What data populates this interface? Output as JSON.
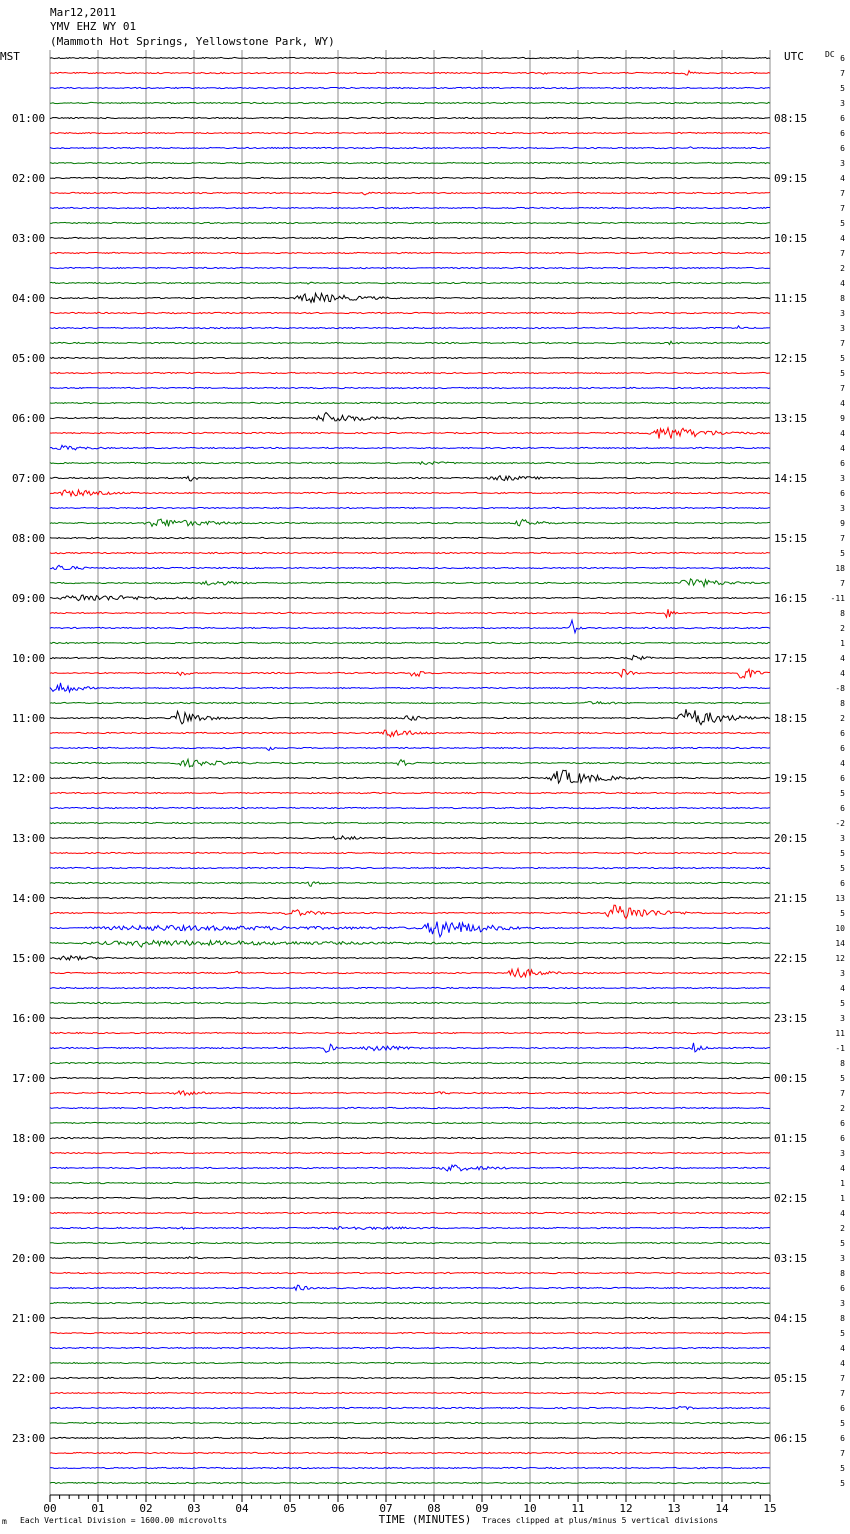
{
  "header": {
    "date": "Mar12,2011",
    "station": "YMV EHZ WY 01",
    "location": "(Mammoth Hot Springs, Yellowstone Park, WY)"
  },
  "left_zone": "MST",
  "right_zone": "UTC",
  "dc_header": "DC",
  "footer": {
    "scale_note": "Each Vertical Division = 1600.00 microvolts",
    "clip_note": "Traces clipped at plus/minus 5 vertical divisions",
    "mark": "m"
  },
  "colors": {
    "trace_cycle": [
      "#000000",
      "#ff0000",
      "#0000ff",
      "#007700"
    ],
    "grid": "#8c8c8c"
  },
  "chart_data": {
    "type": "line",
    "title": "YMV EHZ WY 01",
    "xlabel": "TIME (MINUTES)",
    "ylabel": "",
    "x_ticks": [
      "00",
      "01",
      "02",
      "03",
      "04",
      "05",
      "06",
      "07",
      "08",
      "09",
      "10",
      "11",
      "12",
      "13",
      "14",
      "15"
    ],
    "xlim": [
      0,
      15
    ],
    "minutes_per_line": 15,
    "lines_count": 96,
    "left_labels": [
      {
        "line": 4,
        "text": "01:00"
      },
      {
        "line": 8,
        "text": "02:00"
      },
      {
        "line": 12,
        "text": "03:00"
      },
      {
        "line": 16,
        "text": "04:00"
      },
      {
        "line": 20,
        "text": "05:00"
      },
      {
        "line": 24,
        "text": "06:00"
      },
      {
        "line": 28,
        "text": "07:00"
      },
      {
        "line": 32,
        "text": "08:00"
      },
      {
        "line": 36,
        "text": "09:00"
      },
      {
        "line": 40,
        "text": "10:00"
      },
      {
        "line": 44,
        "text": "11:00"
      },
      {
        "line": 48,
        "text": "12:00"
      },
      {
        "line": 52,
        "text": "13:00"
      },
      {
        "line": 56,
        "text": "14:00"
      },
      {
        "line": 60,
        "text": "15:00"
      },
      {
        "line": 64,
        "text": "16:00"
      },
      {
        "line": 68,
        "text": "17:00"
      },
      {
        "line": 72,
        "text": "18:00"
      },
      {
        "line": 76,
        "text": "19:00"
      },
      {
        "line": 80,
        "text": "20:00"
      },
      {
        "line": 84,
        "text": "21:00"
      },
      {
        "line": 88,
        "text": "22:00"
      },
      {
        "line": 92,
        "text": "23:00"
      }
    ],
    "right_labels": [
      {
        "line": 4,
        "text": "08:15"
      },
      {
        "line": 8,
        "text": "09:15"
      },
      {
        "line": 12,
        "text": "10:15"
      },
      {
        "line": 16,
        "text": "11:15"
      },
      {
        "line": 20,
        "text": "12:15"
      },
      {
        "line": 24,
        "text": "13:15"
      },
      {
        "line": 28,
        "text": "14:15"
      },
      {
        "line": 32,
        "text": "15:15"
      },
      {
        "line": 36,
        "text": "16:15"
      },
      {
        "line": 40,
        "text": "17:15"
      },
      {
        "line": 44,
        "text": "18:15"
      },
      {
        "line": 48,
        "text": "19:15"
      },
      {
        "line": 52,
        "text": "20:15"
      },
      {
        "line": 56,
        "text": "21:15"
      },
      {
        "line": 60,
        "text": "22:15"
      },
      {
        "line": 64,
        "text": "23:15"
      },
      {
        "line": 68,
        "text": "00:15"
      },
      {
        "line": 72,
        "text": "01:15"
      },
      {
        "line": 76,
        "text": "02:15"
      },
      {
        "line": 80,
        "text": "03:15"
      },
      {
        "line": 84,
        "text": "04:15"
      },
      {
        "line": 88,
        "text": "05:15"
      },
      {
        "line": 92,
        "text": "06:15"
      }
    ],
    "dc_values": [
      "6",
      "7",
      "5",
      "3",
      "6",
      "6",
      "6",
      "3",
      "4",
      "7",
      "7",
      "5",
      "4",
      "7",
      "2",
      "4",
      "8",
      "3",
      "3",
      "7",
      "5",
      "5",
      "7",
      "4",
      "9",
      "4",
      "4",
      "6",
      "3",
      "6",
      "3",
      "9",
      "7",
      "5",
      "18",
      "7",
      "-11",
      "8",
      "2",
      "1",
      "4",
      "4",
      "-8",
      "8",
      "2",
      "6",
      "6",
      "4",
      "6",
      "5",
      "6",
      "-2",
      "3",
      "5",
      "5",
      "6",
      "13",
      "5",
      "10",
      "14",
      "12",
      "3",
      "4",
      "5",
      "3",
      "11",
      "-1",
      "8",
      "5",
      "7",
      "2",
      "6",
      "6",
      "3",
      "4",
      "1",
      "1",
      "4",
      "2",
      "5",
      "3",
      "8",
      "6",
      "3",
      "8",
      "5",
      "4",
      "4",
      "7",
      "7",
      "6",
      "5",
      "6",
      "7",
      "5",
      "5"
    ],
    "events": [
      {
        "line": 1,
        "start": 13.2,
        "end": 13.6,
        "amp": 4
      },
      {
        "line": 1,
        "start": 10.2,
        "end": 10.6,
        "amp": 2
      },
      {
        "line": 6,
        "start": 13.3,
        "end": 13.5,
        "amp": 2
      },
      {
        "line": 9,
        "start": 6.5,
        "end": 6.9,
        "amp": 3
      },
      {
        "line": 15,
        "start": 5.3,
        "end": 5.7,
        "amp": 2
      },
      {
        "line": 16,
        "start": 5.0,
        "end": 7.8,
        "amp": 6
      },
      {
        "line": 18,
        "start": 14.3,
        "end": 14.6,
        "amp": 3
      },
      {
        "line": 19,
        "start": 12.8,
        "end": 13.6,
        "amp": 2
      },
      {
        "line": 24,
        "start": 5.4,
        "end": 7.8,
        "amp": 6
      },
      {
        "line": 25,
        "start": 12.4,
        "end": 15.0,
        "amp": 8
      },
      {
        "line": 26,
        "start": 0.0,
        "end": 1.8,
        "amp": 3
      },
      {
        "line": 27,
        "start": 7.5,
        "end": 9.5,
        "amp": 2
      },
      {
        "line": 28,
        "start": 2.8,
        "end": 3.4,
        "amp": 4
      },
      {
        "line": 28,
        "start": 9.0,
        "end": 11.5,
        "amp": 3
      },
      {
        "line": 29,
        "start": 0.0,
        "end": 2.5,
        "amp": 4
      },
      {
        "line": 31,
        "start": 1.8,
        "end": 5.0,
        "amp": 5
      },
      {
        "line": 31,
        "start": 9.6,
        "end": 11.0,
        "amp": 4
      },
      {
        "line": 34,
        "start": 0.0,
        "end": 1.2,
        "amp": 4
      },
      {
        "line": 35,
        "start": 3.0,
        "end": 5.0,
        "amp": 3
      },
      {
        "line": 35,
        "start": 13.0,
        "end": 15.0,
        "amp": 6
      },
      {
        "line": 36,
        "start": 0.0,
        "end": 4.5,
        "amp": 4
      },
      {
        "line": 37,
        "start": 12.8,
        "end": 13.2,
        "amp": 7
      },
      {
        "line": 38,
        "start": 10.8,
        "end": 11.1,
        "amp": 12
      },
      {
        "line": 39,
        "start": 11.8,
        "end": 12.2,
        "amp": 2
      },
      {
        "line": 40,
        "start": 12.0,
        "end": 13.0,
        "amp": 3
      },
      {
        "line": 41,
        "start": 2.6,
        "end": 3.2,
        "amp": 4
      },
      {
        "line": 41,
        "start": 7.5,
        "end": 8.0,
        "amp": 8
      },
      {
        "line": 41,
        "start": 11.8,
        "end": 12.4,
        "amp": 6
      },
      {
        "line": 41,
        "start": 14.3,
        "end": 15.0,
        "amp": 10
      },
      {
        "line": 42,
        "start": 0.0,
        "end": 1.0,
        "amp": 9
      },
      {
        "line": 43,
        "start": 11.0,
        "end": 13.0,
        "amp": 2
      },
      {
        "line": 44,
        "start": 2.5,
        "end": 3.8,
        "amp": 9
      },
      {
        "line": 44,
        "start": 7.3,
        "end": 8.2,
        "amp": 4
      },
      {
        "line": 44,
        "start": 13.0,
        "end": 15.0,
        "amp": 11
      },
      {
        "line": 45,
        "start": 6.8,
        "end": 8.5,
        "amp": 5
      },
      {
        "line": 46,
        "start": 4.5,
        "end": 4.9,
        "amp": 3
      },
      {
        "line": 47,
        "start": 2.5,
        "end": 5.0,
        "amp": 4
      },
      {
        "line": 47,
        "start": 7.2,
        "end": 7.7,
        "amp": 8
      },
      {
        "line": 48,
        "start": 10.3,
        "end": 12.5,
        "amp": 9
      },
      {
        "line": 52,
        "start": 5.8,
        "end": 7.2,
        "amp": 3
      },
      {
        "line": 55,
        "start": 5.3,
        "end": 6.0,
        "amp": 4
      },
      {
        "line": 57,
        "start": 4.8,
        "end": 6.5,
        "amp": 4
      },
      {
        "line": 57,
        "start": 11.5,
        "end": 13.6,
        "amp": 10
      },
      {
        "line": 58,
        "start": 7.7,
        "end": 10.2,
        "amp": 11
      },
      {
        "line": 58,
        "start": 0.0,
        "end": 15.0,
        "amp": 3
      },
      {
        "line": 59,
        "start": 0.0,
        "end": 15.0,
        "amp": 3
      },
      {
        "line": 59,
        "start": 1.8,
        "end": 2.4,
        "amp": 5
      },
      {
        "line": 60,
        "start": 0.0,
        "end": 2.0,
        "amp": 3
      },
      {
        "line": 61,
        "start": 3.8,
        "end": 4.1,
        "amp": 4
      },
      {
        "line": 61,
        "start": 9.4,
        "end": 11.0,
        "amp": 7
      },
      {
        "line": 66,
        "start": 5.7,
        "end": 6.1,
        "amp": 7
      },
      {
        "line": 66,
        "start": 6.4,
        "end": 8.5,
        "amp": 4
      },
      {
        "line": 66,
        "start": 13.3,
        "end": 13.9,
        "amp": 6
      },
      {
        "line": 69,
        "start": 2.5,
        "end": 4.0,
        "amp": 3
      },
      {
        "line": 69,
        "start": 8.0,
        "end": 8.8,
        "amp": 2
      },
      {
        "line": 74,
        "start": 7.9,
        "end": 10.5,
        "amp": 4
      },
      {
        "line": 78,
        "start": 2.6,
        "end": 3.2,
        "amp": 2
      },
      {
        "line": 78,
        "start": 5.3,
        "end": 10.6,
        "amp": 2
      },
      {
        "line": 80,
        "start": 2.8,
        "end": 3.5,
        "amp": 2
      },
      {
        "line": 82,
        "start": 5.0,
        "end": 6.0,
        "amp": 3
      },
      {
        "line": 90,
        "start": 13.0,
        "end": 14.0,
        "amp": 2
      }
    ]
  }
}
